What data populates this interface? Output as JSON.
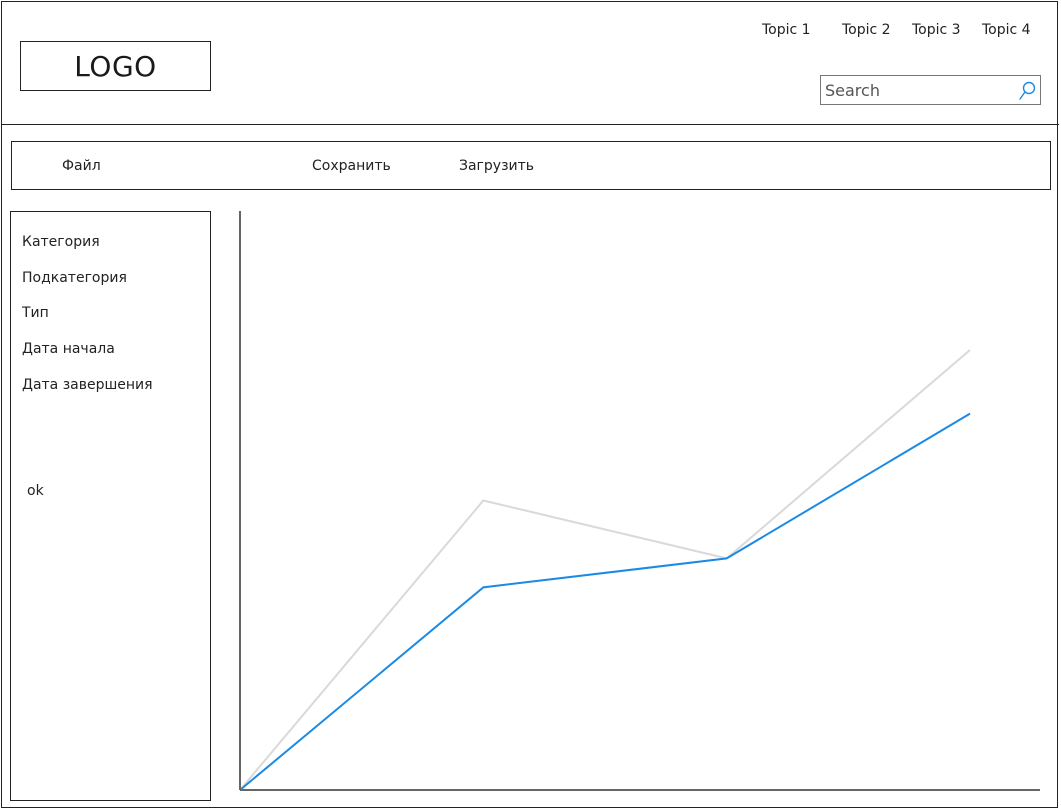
{
  "header": {
    "logo": "LOGO",
    "topics": [
      "Topic 1",
      "Topic 2",
      "Topic 3",
      "Topic 4"
    ],
    "search": {
      "placeholder": "Search",
      "value": ""
    }
  },
  "menu": {
    "file": "Файл",
    "save": "Сохранить",
    "load": "Загрузить"
  },
  "sidebar": {
    "items": [
      "Категория",
      "Подкатегория",
      "Тип",
      "Дата начала",
      "Дата завершения"
    ],
    "ok": "ok"
  },
  "colors": {
    "accent": "#1a8ae5",
    "secondary_line": "#d9d9d9",
    "axis": "#666666"
  },
  "chart_data": {
    "type": "line",
    "x": [
      0,
      1,
      2,
      3
    ],
    "series": [
      {
        "values": [
          0,
          50,
          40,
          76
        ]
      },
      {
        "values": [
          0,
          35,
          40,
          65
        ]
      }
    ],
    "ylim": [
      0,
      100
    ],
    "xlim": [
      0,
      3
    ],
    "grid": false
  }
}
